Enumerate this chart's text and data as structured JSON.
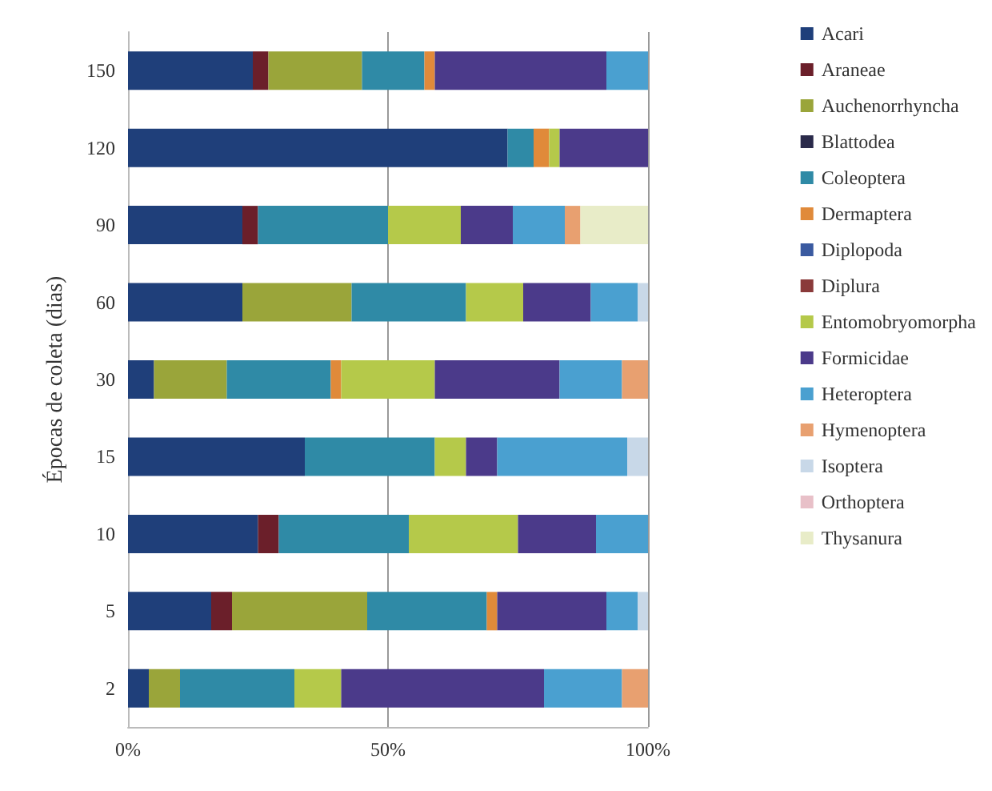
{
  "chart_data": {
    "type": "bar",
    "orientation": "horizontal",
    "stacked": true,
    "ylabel": "Épocas de coleta (dias)",
    "categories": [
      "150",
      "120",
      "90",
      "60",
      "30",
      "15",
      "10",
      "5",
      "2"
    ],
    "xlim": [
      0,
      100
    ],
    "xticks": [
      {
        "value": 0,
        "label": "0%"
      },
      {
        "value": 50,
        "label": "50%"
      },
      {
        "value": 100,
        "label": "100%"
      }
    ],
    "grid": "x",
    "legend": "right",
    "series": [
      {
        "name": "Acari",
        "color": "#1f3f7a",
        "values": [
          24,
          73,
          22,
          22,
          5,
          34,
          25,
          16,
          4
        ]
      },
      {
        "name": "Araneae",
        "color": "#6b1f2a",
        "values": [
          3,
          0,
          3,
          0,
          0,
          0,
          4,
          4,
          0
        ]
      },
      {
        "name": "Auchenorrhyncha",
        "color": "#9aa53a",
        "values": [
          18,
          0,
          0,
          21,
          14,
          0,
          0,
          26,
          6
        ]
      },
      {
        "name": "Blattodea",
        "color": "#2a2a4a",
        "values": [
          0,
          0,
          0,
          0,
          0,
          0,
          0,
          0,
          0
        ]
      },
      {
        "name": "Coleoptera",
        "color": "#2f8aa6",
        "values": [
          12,
          5,
          25,
          22,
          20,
          25,
          25,
          23,
          22
        ]
      },
      {
        "name": "Dermaptera",
        "color": "#e08a3a",
        "values": [
          2,
          3,
          0,
          0,
          2,
          0,
          0,
          2,
          0
        ]
      },
      {
        "name": "Diplopoda",
        "color": "#3a5aa0",
        "values": [
          0,
          0,
          0,
          0,
          0,
          0,
          0,
          0,
          0
        ]
      },
      {
        "name": "Diplura",
        "color": "#8a3a3a",
        "values": [
          0,
          0,
          0,
          0,
          0,
          0,
          0,
          0,
          0
        ]
      },
      {
        "name": "Entomobryomorpha",
        "color": "#b5c94a",
        "values": [
          0,
          2,
          14,
          11,
          18,
          6,
          21,
          0,
          9
        ]
      },
      {
        "name": "Formicidae",
        "color": "#4b3a8a",
        "values": [
          33,
          17,
          10,
          13,
          24,
          6,
          15,
          21,
          39
        ]
      },
      {
        "name": "Heteroptera",
        "color": "#4aa0d0",
        "values": [
          8,
          0,
          10,
          9,
          12,
          25,
          10,
          6,
          15
        ]
      },
      {
        "name": "Hymenoptera",
        "color": "#e8a070",
        "values": [
          0,
          0,
          3,
          0,
          5,
          0,
          0,
          0,
          5
        ]
      },
      {
        "name": "Isoptera",
        "color": "#c8d8e8",
        "values": [
          0,
          0,
          0,
          2,
          0,
          4,
          0,
          2,
          0
        ]
      },
      {
        "name": "Orthoptera",
        "color": "#e8c0c8",
        "values": [
          0,
          0,
          0,
          0,
          0,
          0,
          0,
          0,
          0
        ]
      },
      {
        "name": "Thysanura",
        "color": "#e8ecc8",
        "values": [
          0,
          0,
          13,
          0,
          0,
          0,
          0,
          0,
          0
        ]
      }
    ]
  }
}
